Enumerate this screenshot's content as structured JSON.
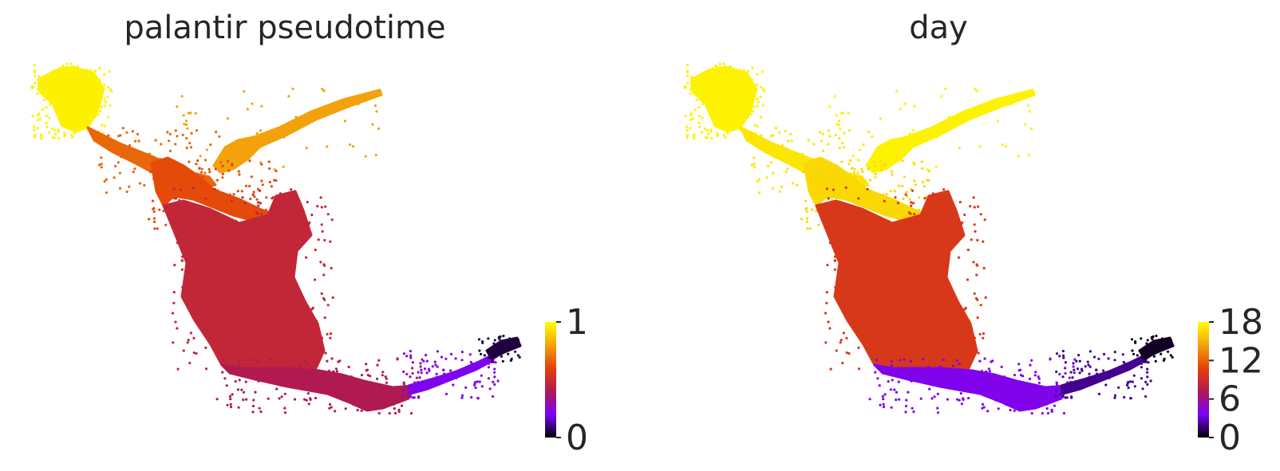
{
  "chart_data": [
    {
      "type": "scatter",
      "title": "palantir pseudotime",
      "xlabel": "",
      "ylabel": "",
      "axes_visible": false,
      "legend": "colorbar-right",
      "colormap": "gnuplot",
      "colormap_stops": [
        "#000000",
        "#7a00ff",
        "#b01a50",
        "#e3400b",
        "#f3a20c",
        "#ffff00"
      ],
      "color_range": [
        0,
        1
      ],
      "colorbar_ticks": [
        {
          "value": 0,
          "label": "0"
        },
        {
          "value": 1,
          "label": "1"
        }
      ],
      "regions": [
        {
          "name": "upper-left-tip",
          "value": 0.97
        },
        {
          "name": "upper-branch",
          "value": 0.8
        },
        {
          "name": "orange-junction",
          "value": 0.68
        },
        {
          "name": "left-middle-lobe",
          "value": 0.62
        },
        {
          "name": "central-body",
          "value": 0.47
        },
        {
          "name": "lower-arc",
          "value": 0.4
        },
        {
          "name": "lower-right-tail",
          "value": 0.22
        },
        {
          "name": "far-right-tip",
          "value": 0.05
        }
      ]
    },
    {
      "type": "scatter",
      "title": "day",
      "xlabel": "",
      "ylabel": "",
      "axes_visible": false,
      "legend": "colorbar-right",
      "colormap": "gnuplot",
      "colormap_stops": [
        "#000000",
        "#7a00ff",
        "#b01a50",
        "#e3400b",
        "#f3a20c",
        "#ffff00"
      ],
      "color_range": [
        0,
        18
      ],
      "colorbar_ticks": [
        {
          "value": 0,
          "label": "0"
        },
        {
          "value": 6,
          "label": "6"
        },
        {
          "value": 12,
          "label": "12"
        },
        {
          "value": 18,
          "label": "18"
        }
      ],
      "regions": [
        {
          "name": "upper-left-tip",
          "value": 17.5
        },
        {
          "name": "upper-branch",
          "value": 17.5
        },
        {
          "name": "orange-junction",
          "value": 17.0
        },
        {
          "name": "left-middle-lobe",
          "value": 16.5
        },
        {
          "name": "central-body",
          "value": 10.0
        },
        {
          "name": "lower-arc",
          "value": 4.0
        },
        {
          "name": "lower-right-tail",
          "value": 2.0
        },
        {
          "name": "far-right-tip",
          "value": 0.5
        }
      ]
    }
  ]
}
